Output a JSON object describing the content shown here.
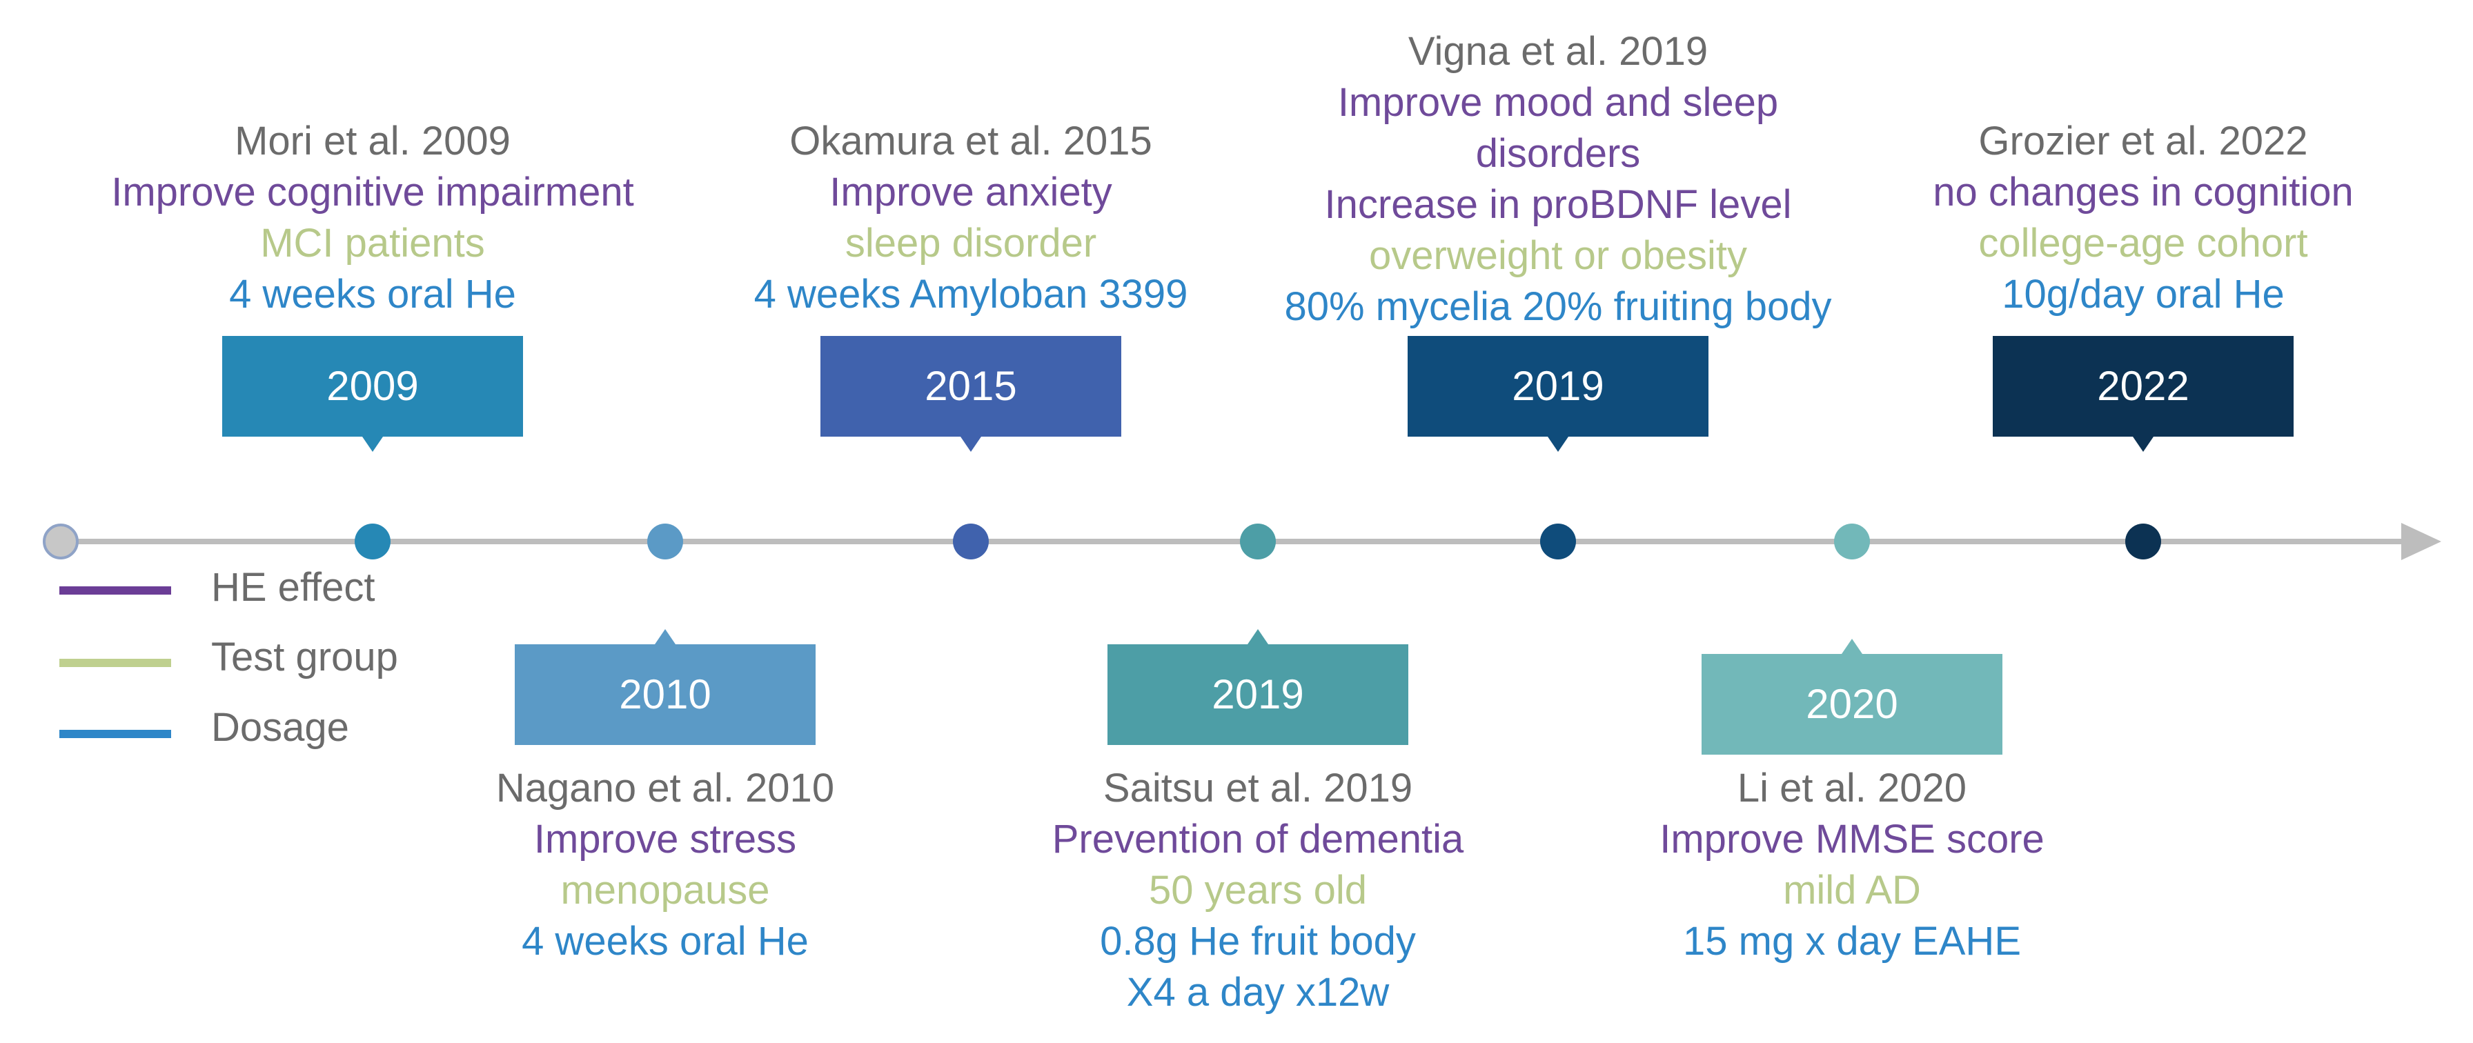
{
  "legend": [
    {
      "label": "HE effect",
      "color": "#6b3d96"
    },
    {
      "label": "Test group",
      "color": "#bfd08f"
    },
    {
      "label": "Dosage",
      "color": "#2e86c8"
    }
  ],
  "colors": {
    "axis": "#bdbdbd",
    "author": "#6b6b6b",
    "effect": "#6f4a9a",
    "group": "#b7c98a",
    "dose": "#2e86c8"
  },
  "events": [
    {
      "year": "2009",
      "position": "above",
      "color": "#2688b5",
      "author": "Mori et al. 2009",
      "lines": [
        {
          "text": "Improve cognitive impairment",
          "kind": "effect"
        },
        {
          "text": "MCI patients",
          "kind": "group"
        },
        {
          "text": "4 weeks oral He",
          "kind": "dose"
        }
      ]
    },
    {
      "year": "2010",
      "position": "below",
      "color": "#5b9ac6",
      "author": "Nagano et al. 2010",
      "lines": [
        {
          "text": "Improve stress",
          "kind": "effect"
        },
        {
          "text": "menopause",
          "kind": "group"
        },
        {
          "text": "4 weeks oral He",
          "kind": "dose"
        }
      ]
    },
    {
      "year": "2015",
      "position": "above",
      "color": "#4062ad",
      "author": "Okamura et al. 2015",
      "lines": [
        {
          "text": "Improve anxiety",
          "kind": "effect"
        },
        {
          "text": "sleep disorder",
          "kind": "group"
        },
        {
          "text": "4 weeks Amyloban 3399",
          "kind": "dose"
        }
      ]
    },
    {
      "year": "2019",
      "position": "below",
      "color": "#4d9ea6",
      "author": "Saitsu et al. 2019",
      "lines": [
        {
          "text": "Prevention of dementia",
          "kind": "effect"
        },
        {
          "text": "50 years old",
          "kind": "group"
        },
        {
          "text": "0.8g He fruit body",
          "kind": "dose"
        },
        {
          "text": "X4 a day x12w",
          "kind": "dose"
        }
      ]
    },
    {
      "year": "2019",
      "position": "above",
      "color": "#0f4c7b",
      "author": "Vigna et al. 2019",
      "lines": [
        {
          "text": "Improve mood and sleep",
          "kind": "effect"
        },
        {
          "text": "disorders",
          "kind": "effect"
        },
        {
          "text": "Increase in proBDNF level",
          "kind": "effect"
        },
        {
          "text": "overweight or obesity",
          "kind": "group"
        },
        {
          "text": "80% mycelia 20% fruiting body",
          "kind": "dose"
        }
      ]
    },
    {
      "year": "2020",
      "position": "below",
      "color": "#72b8b9",
      "author": "Li et al. 2020",
      "lines": [
        {
          "text": "Improve MMSE score",
          "kind": "effect"
        },
        {
          "text": "mild AD",
          "kind": "group"
        },
        {
          "text": "15 mg x day EAHE",
          "kind": "dose"
        }
      ]
    },
    {
      "year": "2022",
      "position": "above",
      "color": "#0c3253",
      "author": "Grozier et al. 2022",
      "lines": [
        {
          "text": "no changes in cognition",
          "kind": "effect"
        },
        {
          "text": "college-age cohort",
          "kind": "group"
        },
        {
          "text": "10g/day oral He",
          "kind": "dose"
        }
      ]
    }
  ]
}
